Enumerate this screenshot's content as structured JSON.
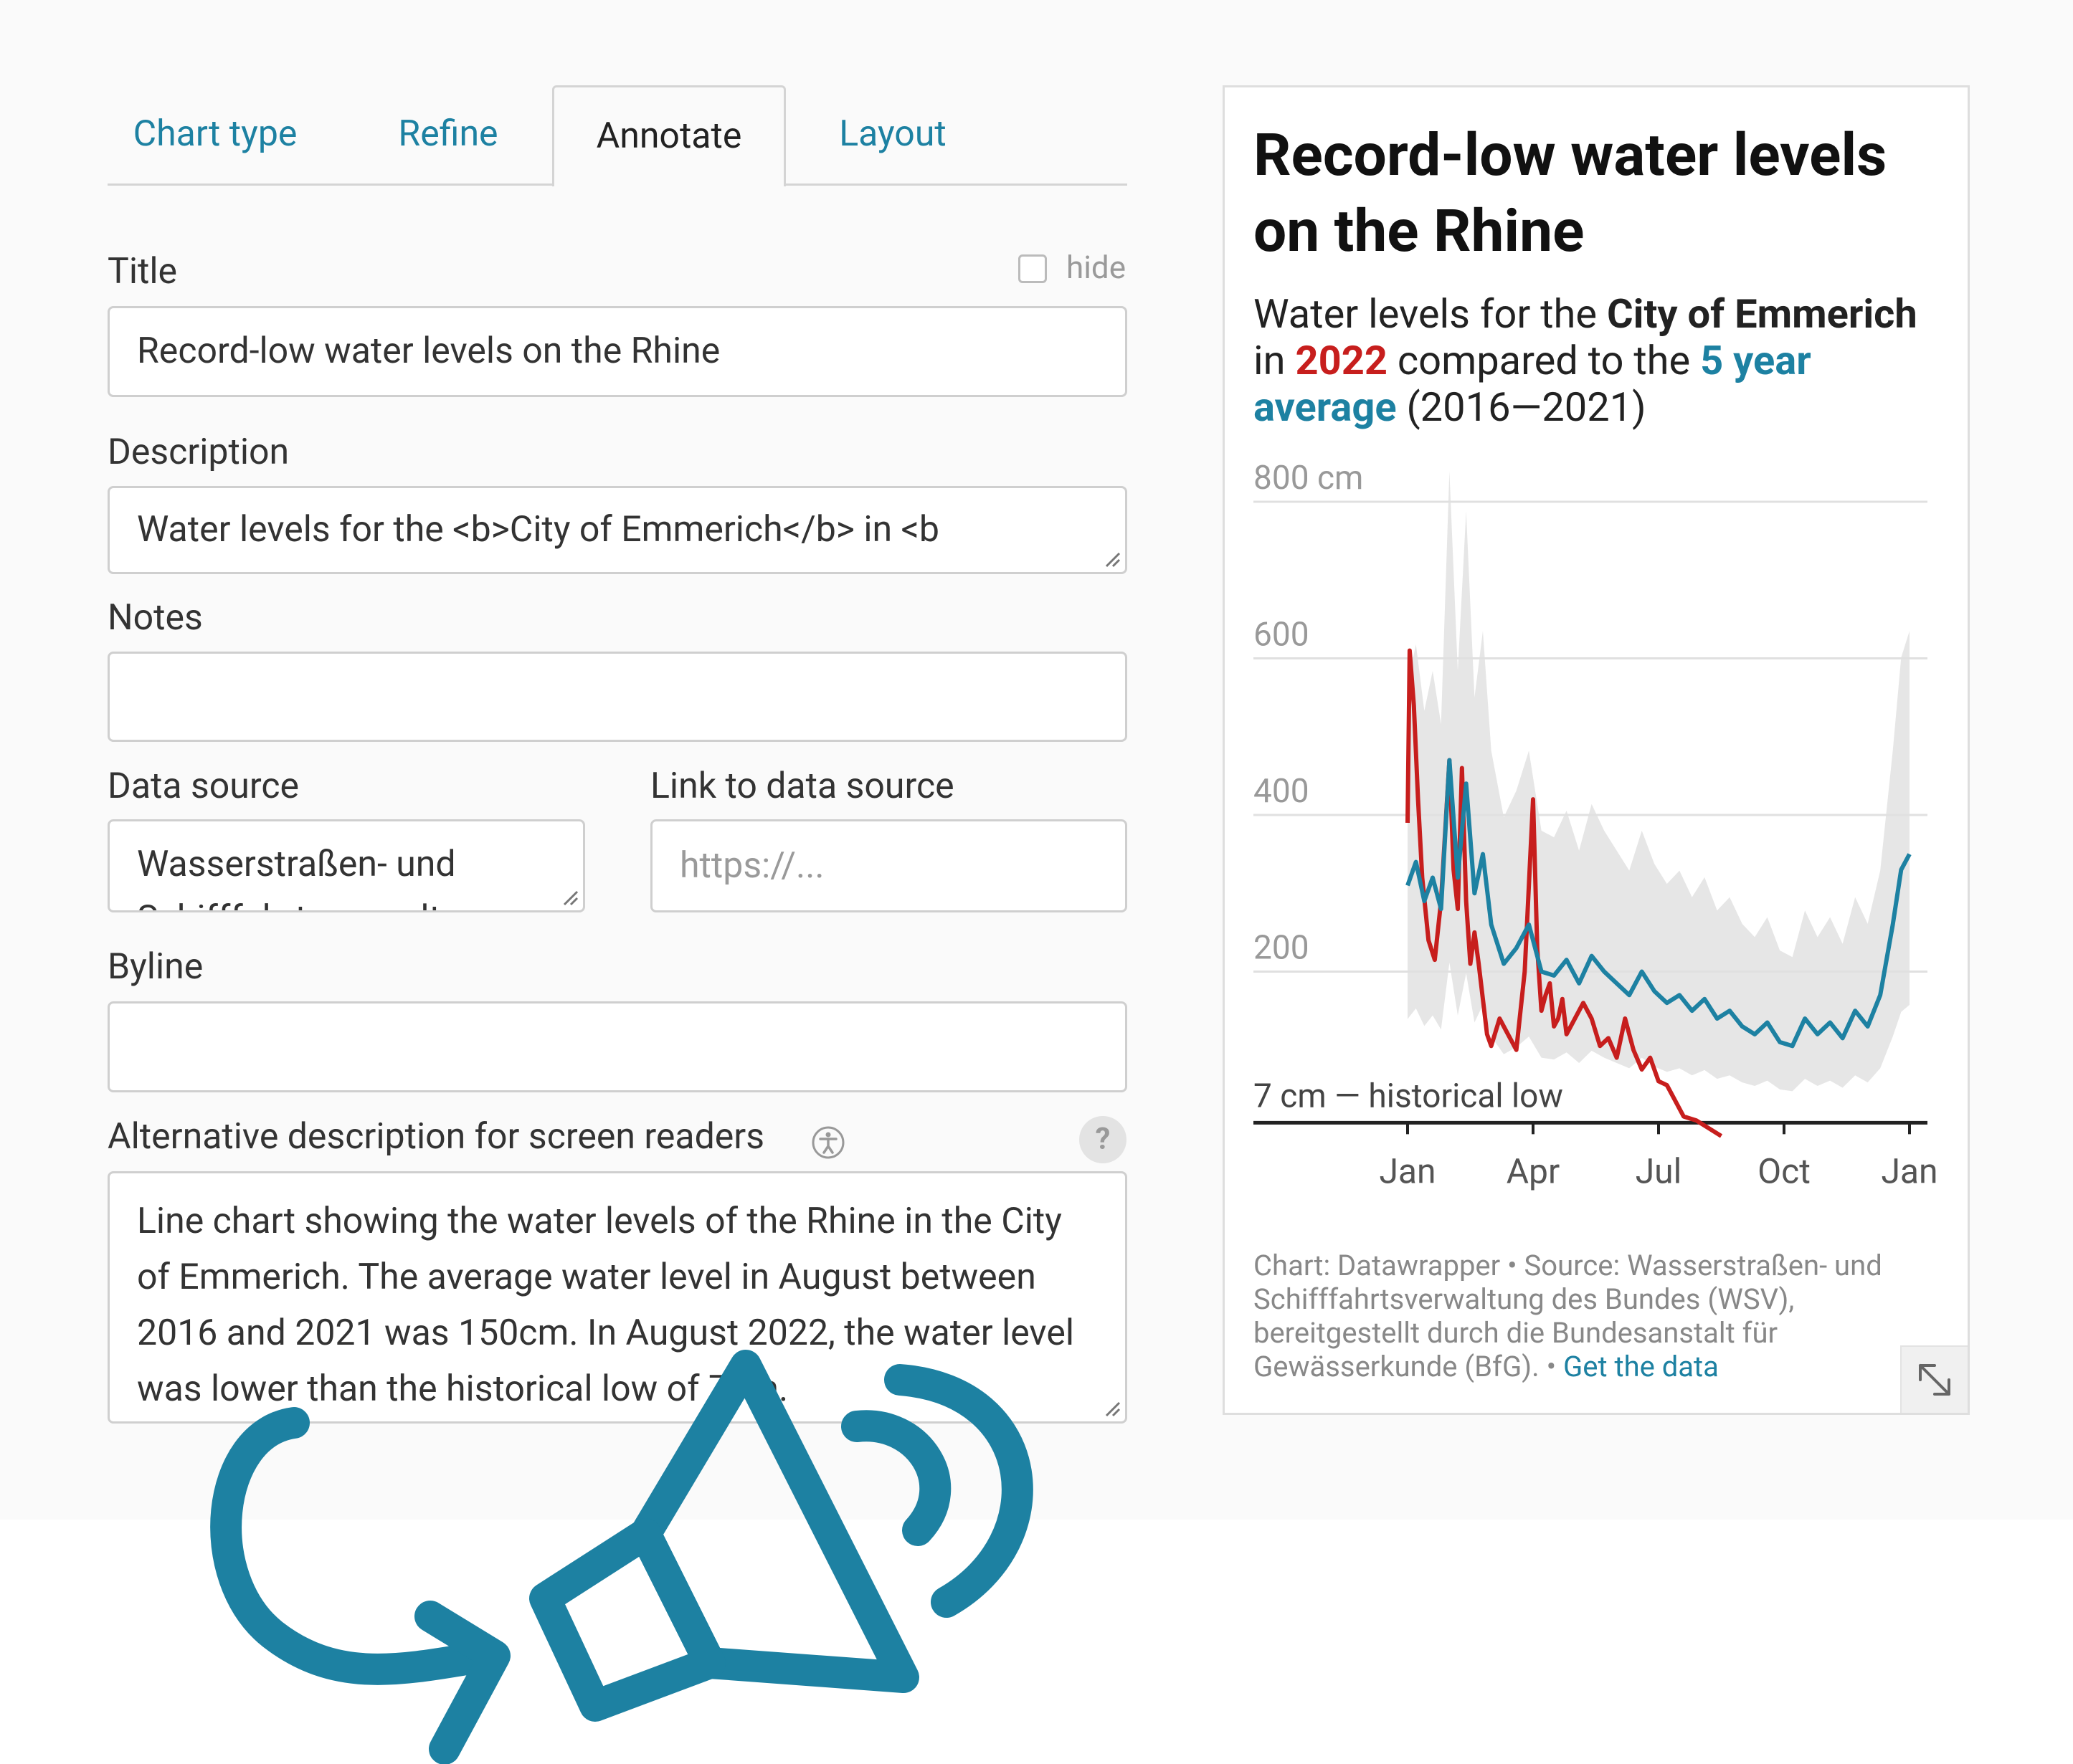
{
  "tabs": [
    {
      "label": "Chart type"
    },
    {
      "label": "Refine"
    },
    {
      "label": "Annotate"
    },
    {
      "label": "Layout"
    }
  ],
  "form": {
    "title_label": "Title",
    "hide_label": "hide",
    "title_value": "Record-low water levels on the Rhine",
    "description_label": "Description",
    "description_value": "Water levels for the <b>City of Emmerich</b> in <b",
    "notes_label": "Notes",
    "notes_value": "",
    "data_source_label": "Data source",
    "data_source_value": "Wasserstraßen- und",
    "data_source_value_cut": "Schifffahrtsverwaltung",
    "link_label": "Link to data source",
    "link_placeholder": "https://...",
    "byline_label": "Byline",
    "byline_value": "",
    "alt_label": "Alternative description for screen readers",
    "alt_help": "?",
    "alt_value": "Line chart showing the water levels of the Rhine in the City of Emmerich. The average water level in August between 2016 and 2021 was 150cm. In August 2022, the water level was lower than the historical low of 7cm."
  },
  "chart": {
    "title": "Record-low water levels on the Rhine",
    "desc_1": "Water levels for the ",
    "desc_city": "City of Emmerich",
    "desc_2": " in ",
    "desc_year": "2022",
    "desc_3": " compared to the ",
    "desc_avg": "5 year average",
    "desc_4": " (2016—2021)",
    "notes_prefix": "Chart: Datawrapper • Source: Wasserstraßen- und Schifffahrtsverwaltung des Bundes (WSV), bereitgestellt durch die Bundesanstalt für Gewässerkunde (BfG). • ",
    "notes_link": "Get the data",
    "colors": {
      "y2022": "#c71e1d",
      "average": "#1d81a2",
      "range": "#e6e6e6"
    }
  },
  "chart_data": {
    "type": "line",
    "title": "Record-low water levels on the Rhine",
    "ylabel_unit": "cm",
    "y_ticks": [
      "800 cm",
      "600",
      "400",
      "200"
    ],
    "y_tick_values": [
      800,
      600,
      400,
      200
    ],
    "baseline_label": "7 cm — historical low",
    "baseline_value": 7,
    "x_ticks": [
      "Jan",
      "Apr",
      "Jul",
      "Oct",
      "Jan"
    ],
    "x_tick_values": [
      0,
      3,
      6,
      9,
      12
    ],
    "ylim": [
      0,
      800
    ],
    "grid": true,
    "series": [
      {
        "name": "2022",
        "x": [
          0,
          0.05,
          0.15,
          0.25,
          0.35,
          0.5,
          0.65,
          0.8,
          1.0,
          1.1,
          1.2,
          1.3,
          1.4,
          1.5,
          1.6,
          1.7,
          1.8,
          1.9,
          2.0,
          2.2,
          2.4,
          2.6,
          2.8,
          3.0,
          3.1,
          3.2,
          3.3,
          3.4,
          3.5,
          3.6,
          3.7,
          3.8,
          4.0,
          4.2,
          4.4,
          4.6,
          4.8,
          5.0,
          5.2,
          5.4,
          5.6,
          5.8,
          6.0,
          6.2,
          6.4,
          6.6,
          6.9,
          7.2,
          7.5
        ],
        "values": [
          390,
          610,
          540,
          420,
          320,
          240,
          215,
          290,
          470,
          330,
          280,
          460,
          290,
          210,
          250,
          210,
          165,
          120,
          105,
          140,
          120,
          100,
          200,
          420,
          230,
          150,
          170,
          185,
          130,
          140,
          165,
          120,
          140,
          160,
          140,
          105,
          115,
          90,
          140,
          100,
          75,
          90,
          60,
          55,
          35,
          15,
          10,
          0,
          -10
        ]
      },
      {
        "name": "5 year average",
        "x": [
          0,
          0.2,
          0.4,
          0.6,
          0.8,
          1.0,
          1.2,
          1.4,
          1.6,
          1.8,
          2.0,
          2.3,
          2.6,
          2.9,
          3.2,
          3.5,
          3.8,
          4.1,
          4.4,
          4.7,
          5.0,
          5.3,
          5.6,
          5.9,
          6.2,
          6.5,
          6.8,
          7.1,
          7.4,
          7.7,
          8.0,
          8.3,
          8.6,
          8.9,
          9.2,
          9.5,
          9.8,
          10.1,
          10.4,
          10.7,
          11.0,
          11.3,
          11.6,
          11.8,
          12.0
        ],
        "values": [
          310,
          340,
          290,
          320,
          280,
          470,
          320,
          440,
          300,
          350,
          260,
          210,
          230,
          260,
          200,
          195,
          215,
          185,
          220,
          200,
          185,
          170,
          200,
          175,
          160,
          170,
          150,
          165,
          140,
          150,
          130,
          120,
          135,
          110,
          105,
          140,
          120,
          135,
          115,
          150,
          130,
          170,
          260,
          330,
          350
        ]
      }
    ]
  }
}
